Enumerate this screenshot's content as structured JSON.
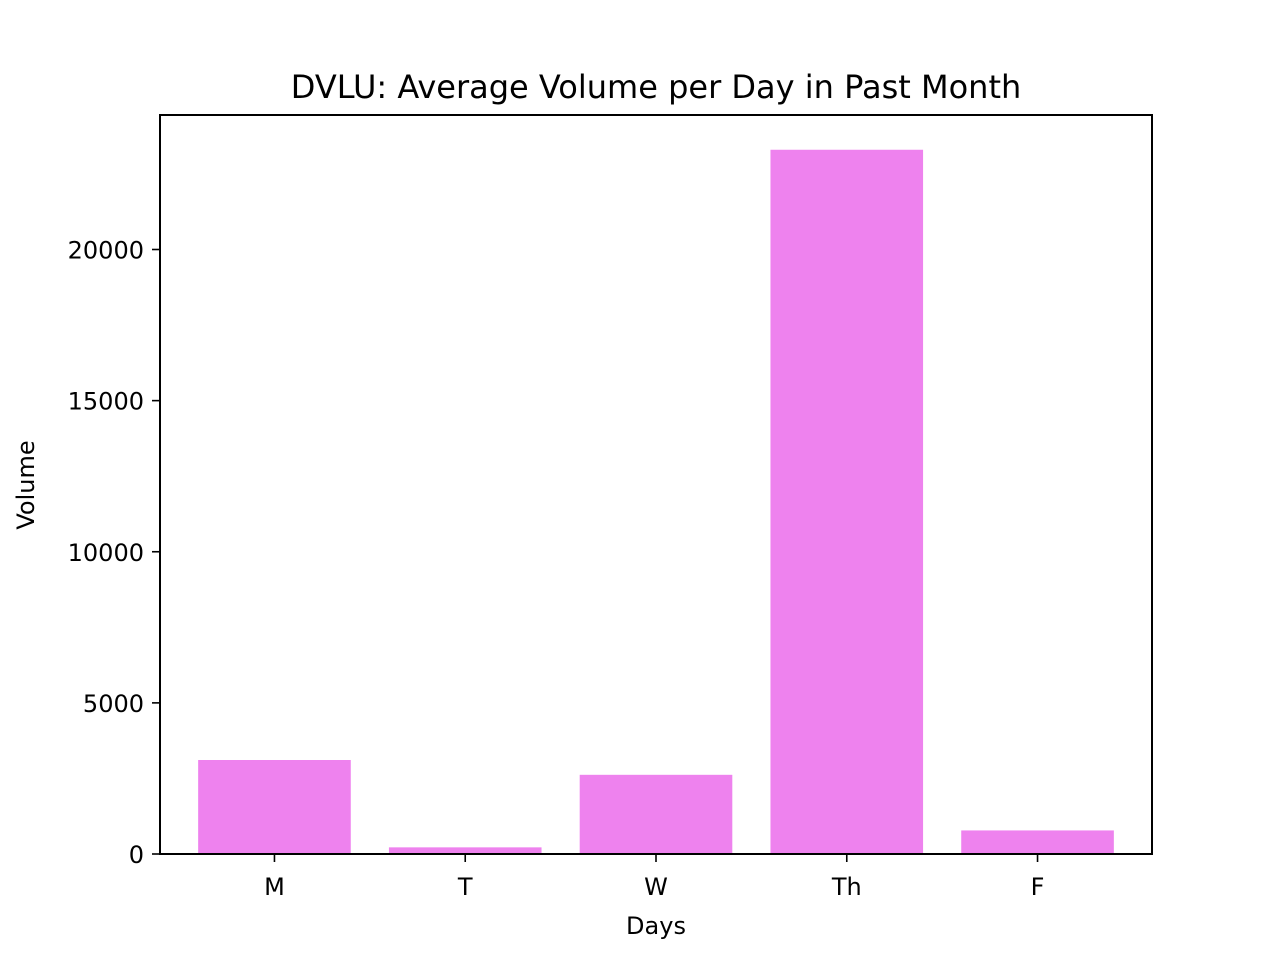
{
  "chart_data": {
    "type": "bar",
    "title": "DVLU: Average Volume per Day in Past Month",
    "xlabel": "Days",
    "ylabel": "Volume",
    "categories": [
      "M",
      "T",
      "W",
      "Th",
      "F"
    ],
    "values": [
      3110,
      220,
      2620,
      23300,
      780
    ],
    "ylim": [
      0,
      24450
    ],
    "yticks": [
      0,
      5000,
      10000,
      15000,
      20000
    ],
    "ytick_labels": [
      "0",
      "5000",
      "10000",
      "15000",
      "20000"
    ],
    "bar_color": "#ee82ee",
    "grid": false,
    "legend": "none"
  }
}
